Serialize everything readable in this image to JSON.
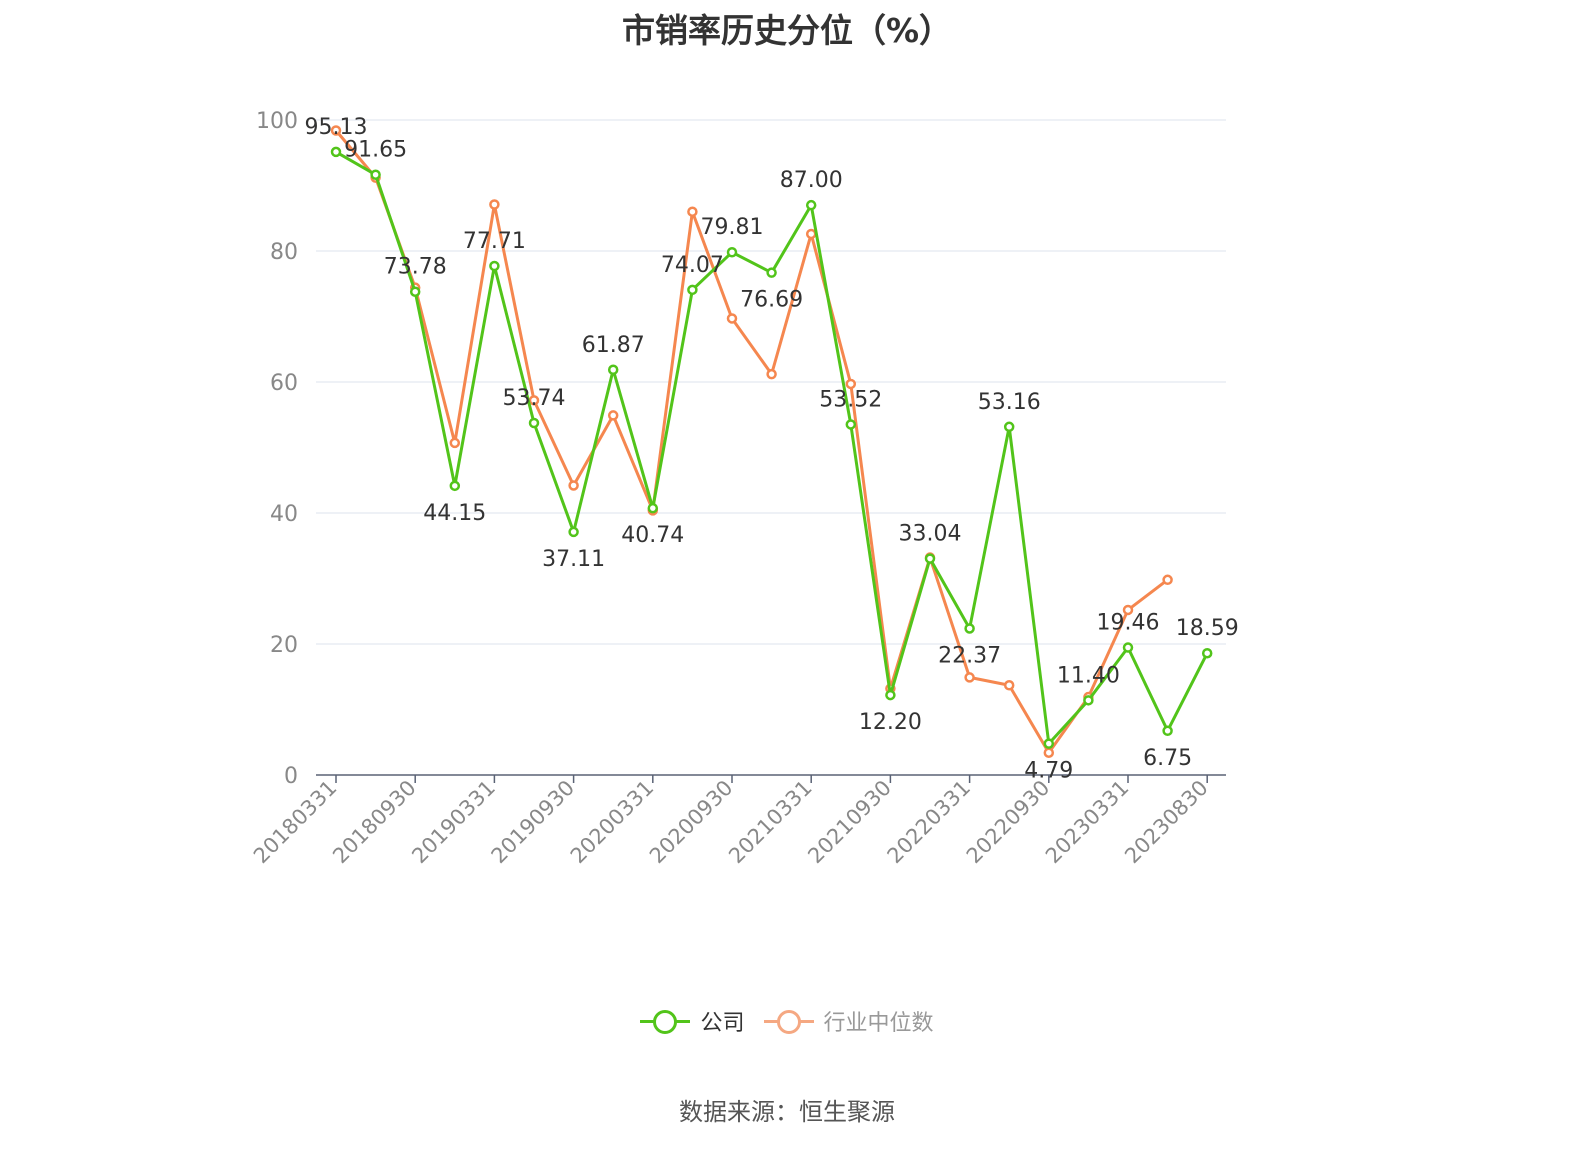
{
  "title": "市销率历史分位（%）",
  "source": "数据来源：恒生聚源",
  "colors": {
    "company": "#52c41a",
    "industry": "#f5874f",
    "grid": "#dde3ee",
    "axis": "#5a6275",
    "tick_label": "#888888",
    "data_label": "#333333"
  },
  "legend": [
    {
      "name": "公司",
      "color": "#52c41a",
      "icon": "circle-line-icon"
    },
    {
      "name": "行业中位数",
      "color": "#f5a882",
      "icon": "circle-line-icon"
    }
  ],
  "chart_data": {
    "type": "line",
    "title": "市销率历史分位（%）",
    "x": [
      "20180331",
      "20180630",
      "20180930",
      "20181231",
      "20190331",
      "20190630",
      "20190930",
      "20191231",
      "20200331",
      "20200630",
      "20200930",
      "20201231",
      "20210331",
      "20210630",
      "20210930",
      "20211231",
      "20220331",
      "20220630",
      "20220930",
      "20221231",
      "20230331",
      "20230630",
      "20230830"
    ],
    "x_tick_labels": [
      "20180331",
      "20180930",
      "20190331",
      "20190930",
      "20200331",
      "20200930",
      "20210331",
      "20210930",
      "20220331",
      "20220930",
      "20230331",
      "20230830"
    ],
    "ylim": [
      0,
      100
    ],
    "yticks": [
      0,
      20,
      40,
      60,
      80,
      100
    ],
    "grid": true,
    "legend_position": "bottom",
    "series": [
      {
        "name": "公司",
        "values": [
          95.13,
          91.65,
          73.78,
          44.15,
          77.71,
          53.74,
          37.11,
          61.87,
          40.74,
          74.07,
          79.81,
          76.69,
          87.0,
          53.52,
          12.2,
          33.04,
          22.37,
          53.16,
          4.79,
          11.4,
          19.46,
          6.75,
          18.59
        ],
        "labels": [
          "95.13",
          "91.65",
          "73.78",
          "44.15",
          "77.71",
          "53.74",
          "37.11",
          "61.87",
          "40.74",
          "74.07",
          "79.81",
          "76.69",
          "87.00",
          "53.52",
          "12.20",
          "33.04",
          "22.37",
          "53.16",
          "4.79",
          "11.40",
          "19.46",
          "6.75",
          "18.59"
        ]
      },
      {
        "name": "行业中位数",
        "values": [
          98.4,
          91.2,
          74.4,
          50.7,
          87.1,
          57.2,
          44.2,
          54.9,
          40.4,
          86.0,
          69.7,
          61.2,
          82.6,
          59.7,
          13.2,
          33.2,
          14.9,
          13.7,
          3.4,
          11.9,
          25.2,
          29.8,
          null
        ],
        "labels": []
      }
    ]
  }
}
